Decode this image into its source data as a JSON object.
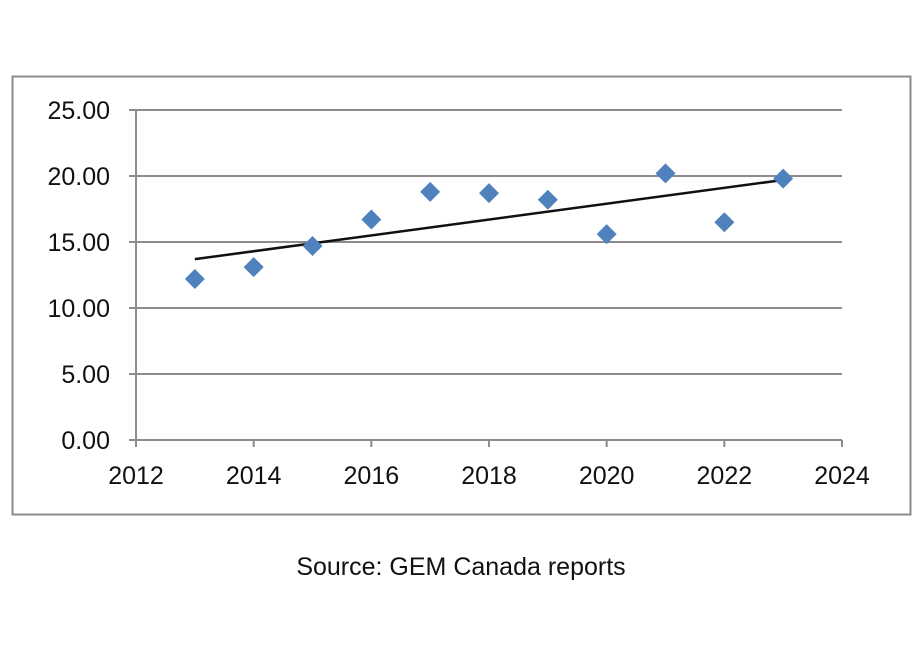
{
  "source_note": "Source: GEM Canada reports",
  "colors": {
    "marker": "#4f81bd",
    "trendline": "#111111",
    "gridline": "#8c8c8c",
    "frame": "#8c8c8c"
  },
  "chart_data": {
    "type": "scatter",
    "title": "",
    "xlabel": "",
    "ylabel": "",
    "xlim": [
      2012,
      2024
    ],
    "ylim": [
      0,
      25
    ],
    "x_ticks": [
      2012,
      2014,
      2016,
      2018,
      2020,
      2022,
      2024
    ],
    "x_tick_labels": [
      "2012",
      "2014",
      "2016",
      "2018",
      "2020",
      "2022",
      "2024"
    ],
    "y_ticks": [
      0,
      5,
      10,
      15,
      20,
      25
    ],
    "y_tick_labels": [
      "0.00",
      "5.00",
      "10.00",
      "15.00",
      "20.00",
      "25.00"
    ],
    "grid": "horizontal",
    "legend": "none",
    "marker": "diamond",
    "series": [
      {
        "x": [
          2013,
          2014,
          2015,
          2016,
          2017,
          2018,
          2019,
          2020,
          2021,
          2022,
          2023
        ],
        "y": [
          12.2,
          13.1,
          14.7,
          16.7,
          18.8,
          18.7,
          18.2,
          15.6,
          20.2,
          16.5,
          19.8
        ]
      }
    ],
    "trendline": {
      "type": "linear",
      "x": [
        2013,
        2023
      ],
      "y": [
        13.7,
        19.7
      ]
    }
  }
}
